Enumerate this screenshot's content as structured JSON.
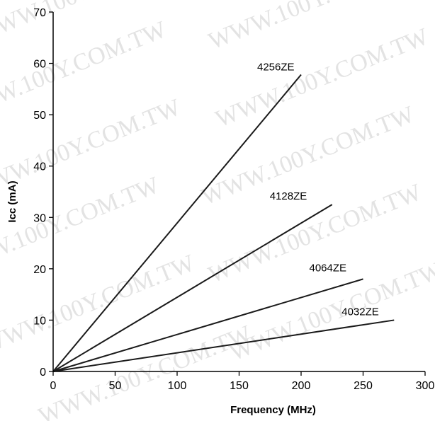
{
  "chart_data": {
    "type": "line",
    "title": "",
    "xlabel": "Frequency (MHz)",
    "ylabel": "Icc (mA)",
    "xlim": [
      0,
      300
    ],
    "ylim": [
      0,
      70
    ],
    "xticks": [
      0,
      50,
      100,
      150,
      200,
      250,
      300
    ],
    "yticks": [
      0,
      10,
      20,
      30,
      40,
      50,
      60,
      70
    ],
    "grid": false,
    "legend": "none",
    "series": [
      {
        "name": "4256ZE",
        "x": [
          0,
          200
        ],
        "y": [
          0,
          57.8
        ]
      },
      {
        "name": "4128ZE",
        "x": [
          0,
          225
        ],
        "y": [
          0,
          32.5
        ]
      },
      {
        "name": "4064ZE",
        "x": [
          0,
          250
        ],
        "y": [
          0,
          18
        ]
      },
      {
        "name": "4032ZE",
        "x": [
          0,
          275
        ],
        "y": [
          0,
          10
        ]
      }
    ]
  },
  "watermark": "WWW.100Y.COM.TW",
  "colors": {
    "line": "#1a1a1a",
    "axis": "#000000",
    "watermark": "#e3e3e3"
  }
}
